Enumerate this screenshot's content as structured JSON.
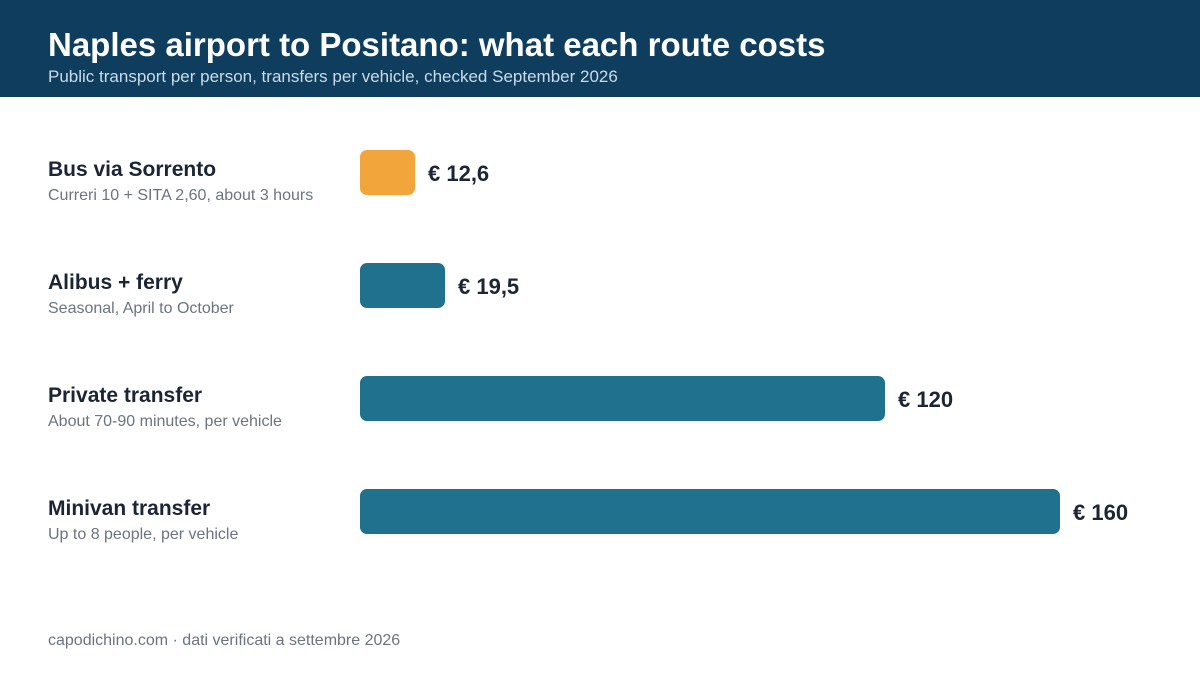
{
  "header": {
    "title": "Naples airport to Positano: what each route costs",
    "subtitle": "Public transport per person, transfers per vehicle, checked September 2026"
  },
  "footer": {
    "source": "capodichino.com · dati verificati a settembre 2026"
  },
  "colors": {
    "header_bg": "#0f3d5e",
    "highlight_bar": "#f2a53b",
    "bar": "#20718d"
  },
  "chart_data": {
    "type": "bar",
    "orientation": "horizontal",
    "title": "Naples airport to Positano: what each route costs",
    "subtitle": "Public transport per person, transfers per vehicle, checked September 2026",
    "categories": [
      "Bus via Sorrento",
      "Alibus + ferry",
      "Private transfer",
      "Minivan transfer"
    ],
    "notes": [
      "Curreri 10 + SITA 2,60, about 3 hours",
      "Seasonal, April to October",
      "About 70-90 minutes, per vehicle",
      "Up to 8 people, per vehicle"
    ],
    "values": [
      12.6,
      19.5,
      120,
      160
    ],
    "value_labels": [
      "€ 12,6",
      "€ 19,5",
      "€ 120",
      "€ 160"
    ],
    "highlighted": [
      true,
      false,
      false,
      false
    ],
    "xlabel": "",
    "ylabel": "",
    "grid": false
  }
}
